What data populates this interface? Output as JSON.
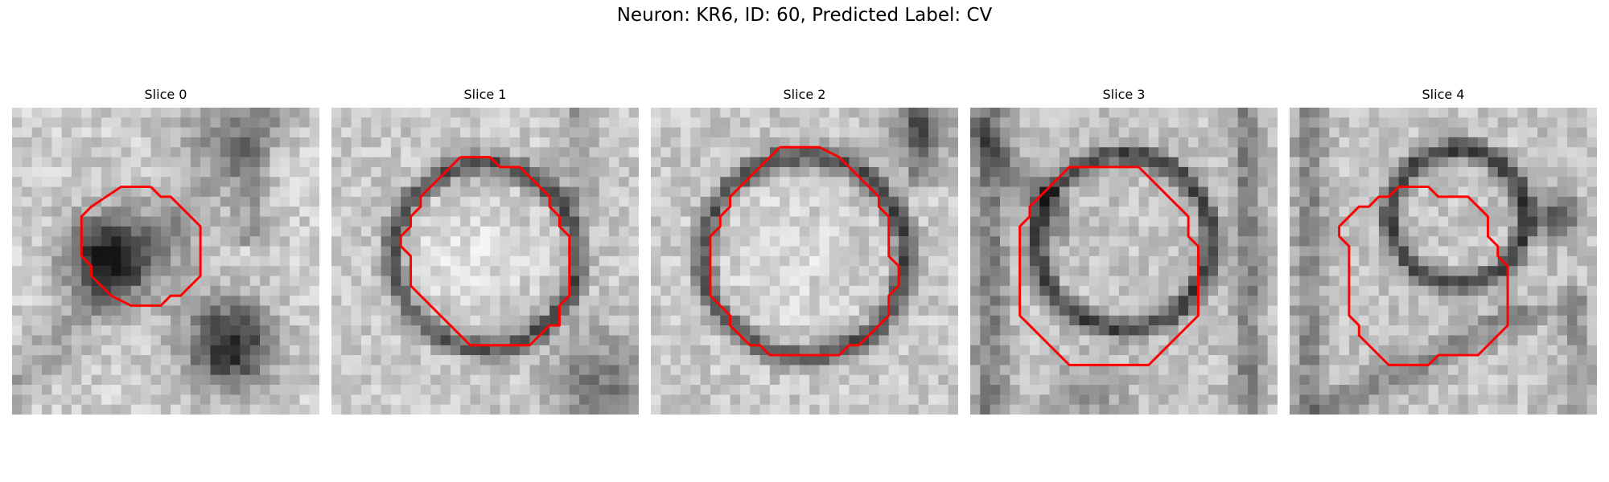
{
  "figure": {
    "title": "Neuron: KR6, ID: 60, Predicted Label: CV"
  },
  "style": {
    "contour_color": "#ff0000"
  },
  "panels": [
    {
      "title": "Slice 0",
      "contour": [
        [
          14,
          8
        ],
        [
          15,
          9
        ],
        [
          16,
          9
        ],
        [
          18,
          11
        ],
        [
          19,
          12
        ],
        [
          19,
          17
        ],
        [
          17,
          19
        ],
        [
          16,
          19
        ],
        [
          15,
          20
        ],
        [
          12,
          20
        ],
        [
          10,
          19
        ],
        [
          9,
          18
        ],
        [
          8,
          17
        ],
        [
          8,
          16
        ],
        [
          7,
          15
        ],
        [
          7,
          11
        ],
        [
          8,
          10
        ],
        [
          11,
          8
        ]
      ]
    },
    {
      "title": "Slice 1",
      "contour": [
        [
          13,
          5
        ],
        [
          16,
          5
        ],
        [
          17,
          6
        ],
        [
          19,
          6
        ],
        [
          20,
          7
        ],
        [
          21,
          8
        ],
        [
          22,
          9
        ],
        [
          22,
          10
        ],
        [
          23,
          11
        ],
        [
          23,
          12
        ],
        [
          24,
          13
        ],
        [
          24,
          19
        ],
        [
          23,
          20
        ],
        [
          23,
          22
        ],
        [
          22,
          22
        ],
        [
          21,
          23
        ],
        [
          20,
          24
        ],
        [
          14,
          24
        ],
        [
          13,
          23
        ],
        [
          12,
          22
        ],
        [
          11,
          21
        ],
        [
          10,
          20
        ],
        [
          9,
          19
        ],
        [
          8,
          18
        ],
        [
          8,
          15
        ],
        [
          7,
          14
        ],
        [
          7,
          13
        ],
        [
          8,
          12
        ],
        [
          8,
          11
        ],
        [
          9,
          10
        ],
        [
          9,
          9
        ],
        [
          10,
          8
        ],
        [
          11,
          7
        ],
        [
          12,
          6
        ]
      ]
    },
    {
      "title": "Slice 2",
      "contour": [
        [
          13,
          4
        ],
        [
          17,
          4
        ],
        [
          19,
          5
        ],
        [
          20,
          6
        ],
        [
          21,
          7
        ],
        [
          22,
          8
        ],
        [
          23,
          9
        ],
        [
          23,
          10
        ],
        [
          24,
          11
        ],
        [
          24,
          15
        ],
        [
          25,
          16
        ],
        [
          25,
          18
        ],
        [
          24,
          19
        ],
        [
          24,
          21
        ],
        [
          23,
          22
        ],
        [
          22,
          23
        ],
        [
          21,
          24
        ],
        [
          20,
          24
        ],
        [
          19,
          25
        ],
        [
          12,
          25
        ],
        [
          11,
          24
        ],
        [
          10,
          24
        ],
        [
          9,
          23
        ],
        [
          8,
          22
        ],
        [
          8,
          21
        ],
        [
          7,
          20
        ],
        [
          6,
          19
        ],
        [
          6,
          13
        ],
        [
          7,
          12
        ],
        [
          7,
          11
        ],
        [
          8,
          10
        ],
        [
          8,
          9
        ],
        [
          9,
          8
        ],
        [
          10,
          7
        ],
        [
          11,
          6
        ],
        [
          12,
          5
        ]
      ]
    },
    {
      "title": "Slice 3",
      "contour": [
        [
          11,
          6
        ],
        [
          17,
          6
        ],
        [
          18,
          7
        ],
        [
          19,
          8
        ],
        [
          20,
          9
        ],
        [
          21,
          10
        ],
        [
          22,
          11
        ],
        [
          22,
          13
        ],
        [
          23,
          14
        ],
        [
          23,
          21
        ],
        [
          22,
          22
        ],
        [
          21,
          23
        ],
        [
          20,
          24
        ],
        [
          19,
          25
        ],
        [
          18,
          26
        ],
        [
          10,
          26
        ],
        [
          9,
          25
        ],
        [
          8,
          24
        ],
        [
          7,
          23
        ],
        [
          6,
          22
        ],
        [
          5,
          21
        ],
        [
          5,
          12
        ],
        [
          6,
          11
        ],
        [
          6,
          10
        ],
        [
          7,
          9
        ],
        [
          8,
          8
        ],
        [
          9,
          7
        ],
        [
          10,
          6
        ]
      ]
    },
    {
      "title": "Slice 4",
      "contour": [
        [
          13,
          8
        ],
        [
          14,
          8
        ],
        [
          15,
          9
        ],
        [
          18,
          9
        ],
        [
          19,
          10
        ],
        [
          20,
          11
        ],
        [
          20,
          13
        ],
        [
          21,
          14
        ],
        [
          21,
          15
        ],
        [
          22,
          16
        ],
        [
          22,
          22
        ],
        [
          21,
          23
        ],
        [
          20,
          24
        ],
        [
          19,
          25
        ],
        [
          15,
          25
        ],
        [
          14,
          26
        ],
        [
          10,
          26
        ],
        [
          9,
          25
        ],
        [
          8,
          24
        ],
        [
          7,
          23
        ],
        [
          7,
          22
        ],
        [
          6,
          21
        ],
        [
          6,
          14
        ],
        [
          5,
          13
        ],
        [
          5,
          12
        ],
        [
          6,
          11
        ],
        [
          7,
          10
        ],
        [
          8,
          10
        ],
        [
          9,
          9
        ],
        [
          10,
          9
        ],
        [
          11,
          8
        ],
        [
          12,
          8
        ]
      ]
    }
  ]
}
